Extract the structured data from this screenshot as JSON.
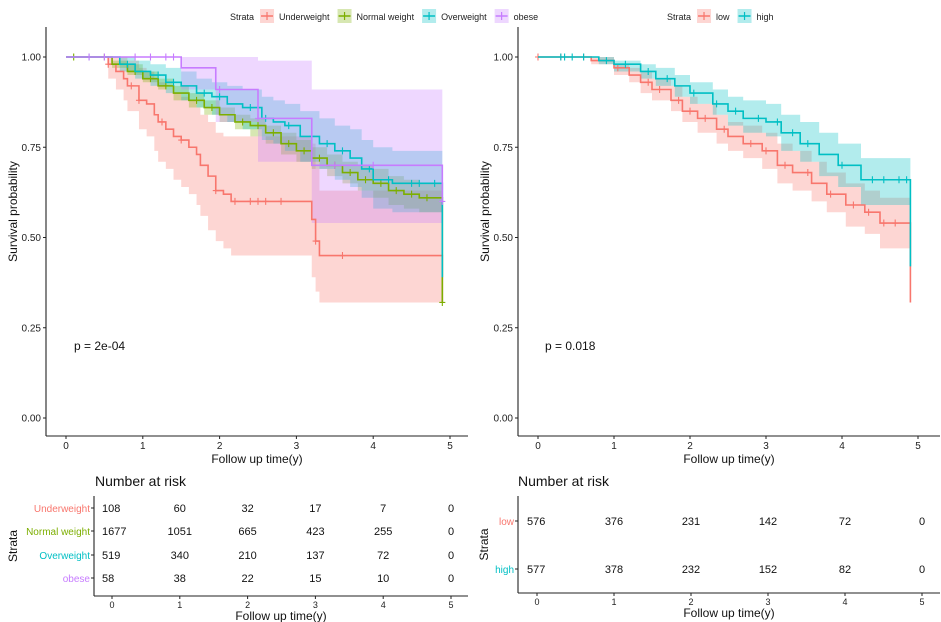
{
  "chart_data": [
    {
      "type": "line",
      "subtype": "kaplan-meier",
      "panel": "left",
      "legend": {
        "title": "Strata",
        "position": "top",
        "entries": [
          "Underweight",
          "Normal weight",
          "Overweight",
          "obese"
        ]
      },
      "xlabel": "Follow up time(y)",
      "ylabel": "Survival probability",
      "xlim": [
        0,
        5
      ],
      "ylim": [
        0,
        1
      ],
      "xticks": [
        "0",
        "1",
        "2",
        "3",
        "4",
        "5"
      ],
      "yticks": [
        "0.00",
        "0.25",
        "0.50",
        "0.75",
        "1.00"
      ],
      "pvalue_label": "p = 2e-04",
      "series": [
        {
          "name": "Underweight",
          "color": "#F8766D",
          "x": [
            0,
            0.55,
            0.65,
            0.75,
            0.8,
            0.95,
            1.05,
            1.15,
            1.2,
            1.3,
            1.4,
            1.5,
            1.6,
            1.7,
            1.75,
            1.85,
            1.95,
            2.05,
            2.15,
            3.2,
            3.25,
            3.3,
            4.9
          ],
          "y": [
            1.0,
            0.98,
            0.96,
            0.94,
            0.92,
            0.88,
            0.87,
            0.84,
            0.82,
            0.8,
            0.78,
            0.77,
            0.75,
            0.73,
            0.7,
            0.67,
            0.63,
            0.62,
            0.6,
            0.55,
            0.49,
            0.45,
            0.32
          ],
          "lower": [
            1.0,
            0.94,
            0.91,
            0.88,
            0.85,
            0.8,
            0.78,
            0.74,
            0.71,
            0.69,
            0.66,
            0.64,
            0.62,
            0.59,
            0.56,
            0.52,
            0.49,
            0.47,
            0.45,
            0.39,
            0.35,
            0.32,
            0.32
          ],
          "upper": [
            1.0,
            1.0,
            1.0,
            1.0,
            0.99,
            0.97,
            0.96,
            0.94,
            0.93,
            0.91,
            0.9,
            0.89,
            0.88,
            0.86,
            0.84,
            0.82,
            0.79,
            0.78,
            0.78,
            0.76,
            0.69,
            0.63,
            0.63
          ],
          "censor": [
            0.55,
            0.85,
            0.95,
            1.25,
            1.5,
            1.95,
            2.2,
            2.4,
            2.5,
            2.6,
            2.8,
            3.25,
            3.6
          ]
        },
        {
          "name": "Normal weight",
          "color": "#7CAE00",
          "x": [
            0,
            0.6,
            0.8,
            1.0,
            1.2,
            1.4,
            1.6,
            1.8,
            2.0,
            2.2,
            2.4,
            2.6,
            2.8,
            3.0,
            3.2,
            3.4,
            3.6,
            3.8,
            4.0,
            4.2,
            4.4,
            4.6,
            4.9
          ],
          "y": [
            1.0,
            0.98,
            0.96,
            0.94,
            0.92,
            0.9,
            0.88,
            0.86,
            0.84,
            0.82,
            0.81,
            0.79,
            0.76,
            0.74,
            0.72,
            0.7,
            0.68,
            0.66,
            0.65,
            0.63,
            0.62,
            0.61,
            0.32
          ],
          "lower": [
            1.0,
            0.97,
            0.95,
            0.93,
            0.91,
            0.88,
            0.86,
            0.84,
            0.82,
            0.8,
            0.78,
            0.76,
            0.73,
            0.71,
            0.69,
            0.67,
            0.65,
            0.63,
            0.61,
            0.59,
            0.58,
            0.57,
            0.32
          ],
          "upper": [
            1.0,
            0.99,
            0.98,
            0.96,
            0.94,
            0.92,
            0.9,
            0.88,
            0.86,
            0.84,
            0.83,
            0.81,
            0.79,
            0.77,
            0.75,
            0.73,
            0.71,
            0.7,
            0.69,
            0.67,
            0.66,
            0.65,
            0.65
          ],
          "censor": [
            0.1,
            0.5,
            0.9,
            1.1,
            1.3,
            1.7,
            1.9,
            2.3,
            2.5,
            2.7,
            2.9,
            3.1,
            3.3,
            3.5,
            3.7,
            3.9,
            4.1,
            4.3,
            4.5,
            4.7,
            4.9
          ]
        },
        {
          "name": "Overweight",
          "color": "#00BFC4",
          "x": [
            0,
            0.7,
            0.9,
            1.1,
            1.3,
            1.5,
            1.7,
            1.9,
            2.1,
            2.3,
            2.55,
            2.7,
            2.85,
            3.05,
            3.3,
            3.5,
            3.7,
            3.85,
            4.0,
            4.25,
            4.9
          ],
          "y": [
            1.0,
            0.98,
            0.96,
            0.95,
            0.93,
            0.92,
            0.9,
            0.89,
            0.87,
            0.86,
            0.83,
            0.82,
            0.81,
            0.78,
            0.76,
            0.74,
            0.72,
            0.69,
            0.66,
            0.65,
            0.39
          ],
          "lower": [
            1.0,
            0.96,
            0.94,
            0.92,
            0.9,
            0.88,
            0.86,
            0.84,
            0.82,
            0.8,
            0.77,
            0.76,
            0.74,
            0.71,
            0.69,
            0.66,
            0.64,
            0.61,
            0.58,
            0.57,
            0.57
          ],
          "upper": [
            1.0,
            1.0,
            0.99,
            0.98,
            0.97,
            0.96,
            0.94,
            0.93,
            0.92,
            0.91,
            0.89,
            0.88,
            0.87,
            0.85,
            0.83,
            0.81,
            0.8,
            0.77,
            0.75,
            0.74,
            0.74
          ],
          "censor": [
            0.3,
            0.8,
            1.2,
            1.4,
            1.8,
            2.0,
            2.4,
            2.6,
            2.9,
            3.2,
            3.4,
            3.6,
            3.95,
            4.2,
            4.5,
            4.6,
            4.8
          ]
        },
        {
          "name": "obese",
          "color": "#C77CFF",
          "x": [
            0,
            1.5,
            1.95,
            2.5,
            3.2,
            4.9
          ],
          "y": [
            1.0,
            0.97,
            0.91,
            0.83,
            0.7,
            0.6
          ],
          "lower": [
            1.0,
            0.91,
            0.82,
            0.71,
            0.54,
            0.54
          ],
          "upper": [
            1.0,
            1.0,
            1.0,
            0.99,
            0.91,
            0.91
          ],
          "censor": [
            0.3,
            0.5,
            0.9,
            1.1,
            1.3,
            1.4,
            2.0,
            2.5,
            3.5,
            4.0,
            4.9
          ]
        }
      ],
      "risk_table": {
        "title": "Number at risk",
        "ylabel": "Strata",
        "xlabel": "Follow up time(y)",
        "times": [
          "0",
          "1",
          "2",
          "3",
          "4",
          "5"
        ],
        "rows": [
          {
            "name": "Underweight",
            "color": "#F8766D",
            "values": [
              "108",
              "60",
              "32",
              "17",
              "7",
              "0"
            ]
          },
          {
            "name": "Normal weight",
            "color": "#7CAE00",
            "values": [
              "1677",
              "1051",
              "665",
              "423",
              "255",
              "0"
            ]
          },
          {
            "name": "Overweight",
            "color": "#00BFC4",
            "values": [
              "519",
              "340",
              "210",
              "137",
              "72",
              "0"
            ]
          },
          {
            "name": "obese",
            "color": "#C77CFF",
            "values": [
              "58",
              "38",
              "22",
              "15",
              "10",
              "0"
            ]
          }
        ]
      }
    },
    {
      "type": "line",
      "subtype": "kaplan-meier",
      "panel": "right",
      "legend": {
        "title": "Strata",
        "position": "top",
        "entries": [
          "low",
          "high"
        ]
      },
      "xlabel": "Follow up time(y)",
      "ylabel": "Survival probability",
      "xlim": [
        0,
        5
      ],
      "ylim": [
        0,
        1
      ],
      "xticks": [
        "0",
        "1",
        "2",
        "3",
        "4",
        "5"
      ],
      "yticks": [
        "0.00",
        "0.25",
        "0.50",
        "0.75",
        "1.00"
      ],
      "pvalue_label": "p = 0.018",
      "series": [
        {
          "name": "low",
          "color": "#F8766D",
          "x": [
            0,
            0.7,
            1.0,
            1.2,
            1.35,
            1.5,
            1.75,
            1.9,
            2.1,
            2.35,
            2.5,
            2.7,
            2.95,
            3.15,
            3.35,
            3.6,
            3.8,
            4.05,
            4.3,
            4.5,
            4.9
          ],
          "y": [
            1.0,
            0.99,
            0.97,
            0.95,
            0.93,
            0.91,
            0.88,
            0.85,
            0.83,
            0.8,
            0.78,
            0.76,
            0.74,
            0.7,
            0.68,
            0.65,
            0.62,
            0.59,
            0.57,
            0.54,
            0.32
          ],
          "lower": [
            1.0,
            0.98,
            0.95,
            0.93,
            0.9,
            0.88,
            0.85,
            0.82,
            0.79,
            0.76,
            0.74,
            0.72,
            0.69,
            0.65,
            0.63,
            0.6,
            0.57,
            0.53,
            0.51,
            0.47,
            0.47
          ],
          "upper": [
            1.0,
            1.0,
            0.98,
            0.97,
            0.96,
            0.94,
            0.92,
            0.89,
            0.87,
            0.84,
            0.82,
            0.81,
            0.79,
            0.76,
            0.74,
            0.71,
            0.68,
            0.65,
            0.63,
            0.61,
            0.61
          ],
          "censor": [
            0,
            0.3,
            0.6,
            1.05,
            1.45,
            1.6,
            1.85,
            2.0,
            2.2,
            2.45,
            2.8,
            3.0,
            3.25,
            3.55,
            3.85,
            4.15,
            4.35,
            4.55,
            4.7
          ]
        },
        {
          "name": "high",
          "color": "#00BFC4",
          "x": [
            0,
            0.8,
            1.0,
            1.35,
            1.55,
            1.8,
            2.0,
            2.3,
            2.5,
            2.7,
            3.0,
            3.2,
            3.45,
            3.7,
            3.95,
            4.25,
            4.9
          ],
          "y": [
            1.0,
            0.99,
            0.98,
            0.96,
            0.94,
            0.92,
            0.9,
            0.87,
            0.85,
            0.83,
            0.82,
            0.79,
            0.76,
            0.73,
            0.7,
            0.66,
            0.42
          ],
          "lower": [
            1.0,
            0.98,
            0.96,
            0.94,
            0.92,
            0.89,
            0.87,
            0.84,
            0.81,
            0.79,
            0.78,
            0.74,
            0.71,
            0.67,
            0.64,
            0.59,
            0.59
          ],
          "upper": [
            1.0,
            1.0,
            0.99,
            0.98,
            0.97,
            0.95,
            0.93,
            0.91,
            0.89,
            0.88,
            0.87,
            0.84,
            0.82,
            0.79,
            0.76,
            0.72,
            0.72
          ],
          "censor": [
            0.3,
            0.35,
            0.45,
            0.6,
            0.9,
            1.15,
            1.45,
            1.7,
            2.05,
            2.35,
            2.6,
            2.9,
            3.15,
            3.35,
            3.55,
            4.0,
            4.4,
            4.55,
            4.75,
            4.85
          ]
        }
      ],
      "risk_table": {
        "title": "Number at risk",
        "ylabel": "Strata",
        "xlabel": "Follow up time(y)",
        "times": [
          "0",
          "1",
          "2",
          "3",
          "4",
          "5"
        ],
        "rows": [
          {
            "name": "low",
            "color": "#F8766D",
            "values": [
              "576",
              "376",
              "231",
              "142",
              "72",
              "0"
            ]
          },
          {
            "name": "high",
            "color": "#00BFC4",
            "values": [
              "577",
              "378",
              "232",
              "152",
              "82",
              "0"
            ]
          }
        ]
      }
    }
  ]
}
